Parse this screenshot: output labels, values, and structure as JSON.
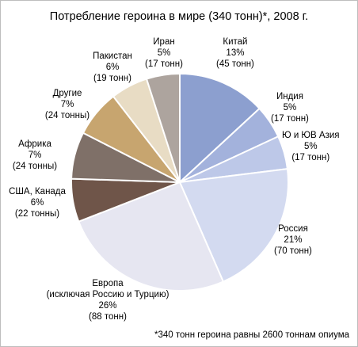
{
  "chart_data": {
    "type": "pie",
    "title": "Потребление героина в мире (340 тонн)*, 2008 г.",
    "footnote": "*340 тонн героина равны 2600 тоннам опиума",
    "slices": [
      {
        "name": "Китай",
        "value": 45,
        "percent": "13%",
        "amount": "(45 тонн)",
        "color": "#8c9fcf"
      },
      {
        "name": "Индия",
        "value": 17,
        "percent": "5%",
        "amount": "(17 тонн)",
        "color": "#a3b2dc"
      },
      {
        "name": "Ю и ЮВ Азия",
        "value": 17,
        "percent": "5%",
        "amount": "(17 тонн)",
        "color": "#bdc8e8"
      },
      {
        "name": "Россия",
        "value": 70,
        "percent": "21%",
        "amount": "(70 тонн)",
        "color": "#d3daf0"
      },
      {
        "name": "Европа",
        "name2": "(исключая Россию и Турцию)",
        "value": 88,
        "percent": "26%",
        "amount": "(88 тонн)",
        "color": "#e6e6f1"
      },
      {
        "name": "США, Канада",
        "value": 22,
        "percent": "6%",
        "amount": "(22 тонны)",
        "color": "#6f5549"
      },
      {
        "name": "Африка",
        "value": 24,
        "percent": "7%",
        "amount": "(24 тонны)",
        "color": "#7f7068"
      },
      {
        "name": "Другие",
        "value": 24,
        "percent": "7%",
        "amount": "(24 тонны)",
        "color": "#c7a56f"
      },
      {
        "name": "Пакистан",
        "value": 19,
        "percent": "6%",
        "amount": "(19 тонн)",
        "color": "#e8dcc4"
      },
      {
        "name": "Иран",
        "value": 17,
        "percent": "5%",
        "amount": "(17 тонн)",
        "color": "#ada49e"
      }
    ]
  }
}
